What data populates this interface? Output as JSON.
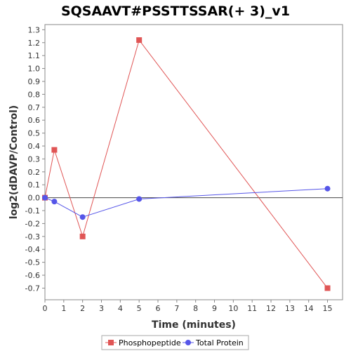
{
  "chart_data": {
    "type": "line",
    "title": "SQSAAVT#PSSTTSSAR(+ 3)_v1",
    "xlabel": "Time (minutes)",
    "ylabel": "log2(dDAVP/Control)",
    "xlim": [
      0,
      15.8
    ],
    "ylim": [
      -0.79,
      1.34
    ],
    "x_ticks": [
      0,
      1,
      2,
      3,
      4,
      5,
      6,
      7,
      8,
      9,
      10,
      11,
      12,
      13,
      14,
      15
    ],
    "y_ticks": [
      1.3,
      1.2,
      1.1,
      1.0,
      0.9,
      0.8,
      0.7,
      0.6,
      0.5,
      0.4,
      0.3,
      0.2,
      0.1,
      0.0,
      -0.1,
      -0.2,
      -0.3,
      -0.4,
      -0.5,
      -0.6,
      -0.7
    ],
    "y_tick_labels": [
      "1.3",
      "1.2",
      "1.1",
      "1.0",
      "0.9",
      "0.8",
      "0.7",
      "0.6",
      "0.5",
      "0.4",
      "0.3",
      "0.2",
      "0.1",
      "0.0",
      "-0.1",
      "-0.2",
      "-0.3",
      "-0.4",
      "-0.5",
      "-0.6",
      "-0.7"
    ],
    "zero_line": true,
    "grid": false,
    "legend_position": "bottom-center",
    "series": [
      {
        "name": "Phosphopeptide",
        "color": "#e05555",
        "marker": "square",
        "points": [
          [
            0,
            0.0
          ],
          [
            0.5,
            0.37
          ],
          [
            2,
            -0.3
          ],
          [
            5,
            1.22
          ],
          [
            15,
            -0.7
          ]
        ]
      },
      {
        "name": "Total Protein",
        "color": "#5555e8",
        "marker": "circle",
        "points": [
          [
            0,
            0.0
          ],
          [
            0.5,
            -0.03
          ],
          [
            2,
            -0.15
          ],
          [
            5,
            -0.01
          ],
          [
            15,
            0.07
          ]
        ]
      }
    ]
  }
}
